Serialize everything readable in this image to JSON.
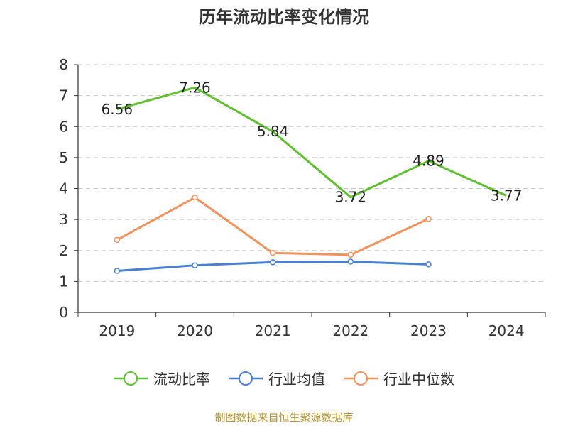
{
  "chart_data": {
    "type": "line",
    "title": "历年流动比率变化情况",
    "categories": [
      "2019",
      "2020",
      "2021",
      "2022",
      "2023",
      "2024"
    ],
    "ylim": [
      0,
      8
    ],
    "yticks": [
      "0",
      "1",
      "2",
      "3",
      "4",
      "5",
      "6",
      "7",
      "8"
    ],
    "grid": true,
    "legend_position": "bottom",
    "series": [
      {
        "name": "流动比率",
        "color": "#5dc02c",
        "values": [
          6.56,
          7.26,
          5.84,
          3.72,
          4.89,
          3.77
        ],
        "labels": [
          "6.56",
          "7.26",
          "5.84",
          "3.72",
          "4.89",
          "3.77"
        ]
      },
      {
        "name": "行业均值",
        "color": "#4a7fd6",
        "values": [
          1.34,
          1.52,
          1.62,
          1.64,
          1.55,
          null
        ]
      },
      {
        "name": "行业中位数",
        "color": "#f5915a",
        "values": [
          2.34,
          3.71,
          1.92,
          1.86,
          3.02,
          null
        ]
      }
    ]
  },
  "source": "制图数据来自恒生聚源数据库"
}
